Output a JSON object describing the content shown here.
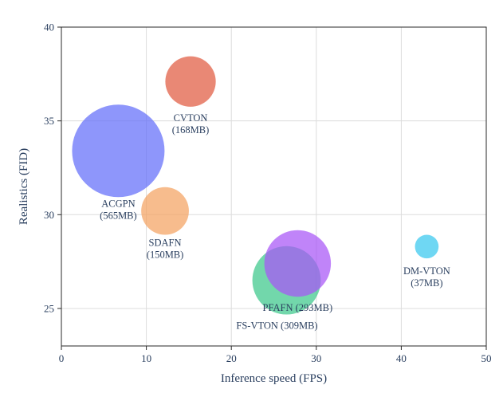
{
  "chart_data": {
    "type": "scatter",
    "xlabel": "Inference speed (FPS)",
    "ylabel": "Realistics (FID)",
    "xlim": [
      0,
      50
    ],
    "ylim": [
      23,
      40
    ],
    "xticks": [
      0,
      10,
      20,
      30,
      40,
      50
    ],
    "yticks": [
      25,
      30,
      35,
      40
    ],
    "grid": true,
    "points": [
      {
        "label_line1": "ACGPN",
        "label_line2": "(565MB)",
        "x": 6.7,
        "y": 33.4,
        "size_mb": 565,
        "color": "#636efa"
      },
      {
        "label_line1": "CVTON",
        "label_line2": "(168MB)",
        "x": 15.2,
        "y": 37.1,
        "size_mb": 168,
        "color": "#e05a40"
      },
      {
        "label_line1": "SDAFN",
        "label_line2": "(150MB)",
        "x": 12.2,
        "y": 30.2,
        "size_mb": 150,
        "color": "#f4a261"
      },
      {
        "label_line1": "FS-VTON (309MB)",
        "label_line2": "",
        "x": 26.5,
        "y": 26.5,
        "size_mb": 309,
        "color": "#3cc88a"
      },
      {
        "label_line1": "PFAFN (293MB)",
        "label_line2": "",
        "x": 27.8,
        "y": 27.4,
        "size_mb": 293,
        "color": "#a855f7"
      },
      {
        "label_line1": "DM-VTON",
        "label_line2": "(37MB)",
        "x": 43.0,
        "y": 28.3,
        "size_mb": 37,
        "color": "#38c8ee"
      }
    ]
  }
}
